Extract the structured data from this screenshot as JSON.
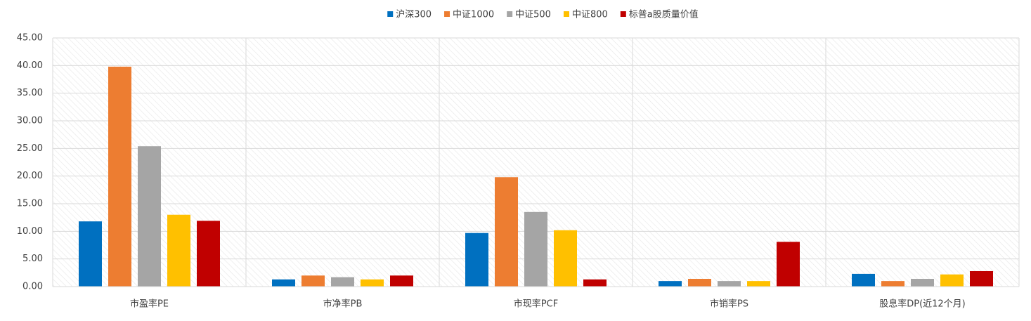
{
  "chart_data": {
    "type": "bar",
    "categories": [
      "市盈率PE",
      "市净率PB",
      "市现率PCF",
      "市销率PS",
      "股息率DP(近12个月)"
    ],
    "series": [
      {
        "name": "沪深300",
        "color": "#0070c0",
        "values": [
          11.8,
          1.3,
          9.7,
          1.0,
          2.3
        ]
      },
      {
        "name": "中证1000",
        "color": "#ed7d31",
        "values": [
          39.8,
          2.0,
          19.8,
          1.4,
          1.0
        ]
      },
      {
        "name": "中证500",
        "color": "#a5a5a5",
        "values": [
          25.4,
          1.7,
          13.5,
          1.0,
          1.4
        ]
      },
      {
        "name": "中证800",
        "color": "#ffc000",
        "values": [
          13.0,
          1.3,
          10.2,
          1.0,
          2.2
        ]
      },
      {
        "name": "标普a股质量价值",
        "color": "#c00000",
        "values": [
          11.9,
          2.0,
          1.3,
          8.1,
          2.8
        ]
      }
    ],
    "ylim": [
      0,
      45
    ],
    "yticks": [
      {
        "value": 0,
        "label": "0.00"
      },
      {
        "value": 5,
        "label": "5.00"
      },
      {
        "value": 10,
        "label": "10.00"
      },
      {
        "value": 15,
        "label": "15.00"
      },
      {
        "value": 20,
        "label": "20.00"
      },
      {
        "value": 25,
        "label": "25.00"
      },
      {
        "value": 30,
        "label": "30.00"
      },
      {
        "value": 35,
        "label": "35.00"
      },
      {
        "value": 40,
        "label": "40.00"
      },
      {
        "value": 45,
        "label": "45.00"
      }
    ],
    "grid": true,
    "legend": "top"
  }
}
